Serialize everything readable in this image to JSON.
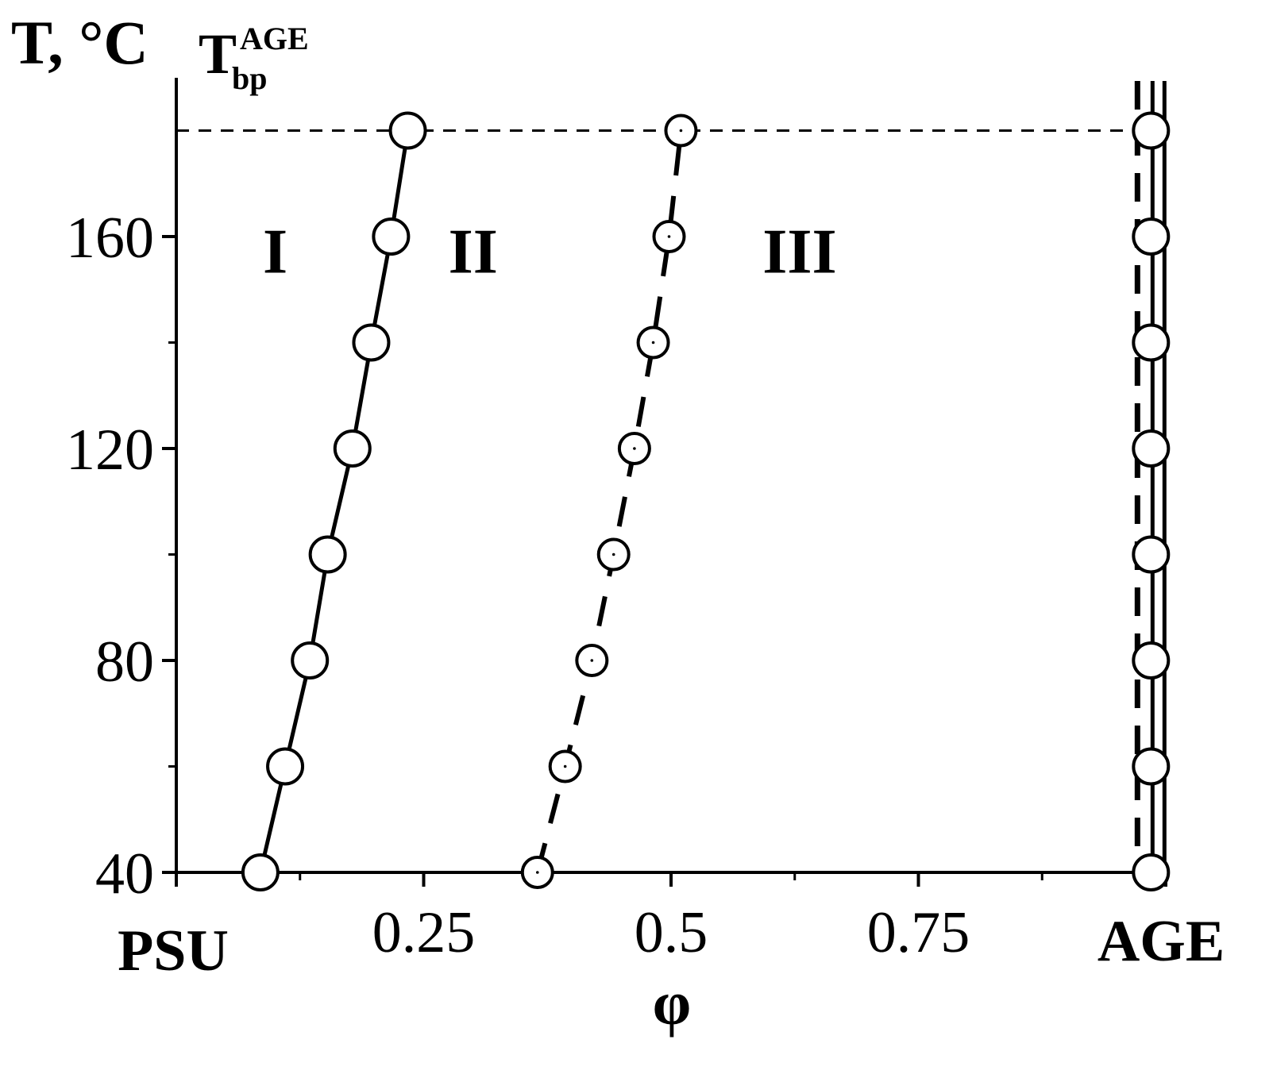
{
  "chart_data": {
    "type": "line",
    "ylabel": "T, °C",
    "xlabel": "φ",
    "bp_label": {
      "main": "T",
      "sup": "AGE",
      "sub": "bp"
    },
    "xlim": [
      0,
      1
    ],
    "ylim": [
      40,
      190
    ],
    "x_ticks": [
      {
        "value": 0.25,
        "label": "0.25"
      },
      {
        "value": 0.5,
        "label": "0.5"
      },
      {
        "value": 0.75,
        "label": "0.75"
      }
    ],
    "x_minor_ticks": [
      0.125,
      0.375,
      0.625,
      0.875
    ],
    "x_end_labels": {
      "left": "PSU",
      "right": "AGE"
    },
    "y_ticks": [
      {
        "value": 40,
        "label": "40"
      },
      {
        "value": 80,
        "label": "80"
      },
      {
        "value": 120,
        "label": "120"
      },
      {
        "value": 160,
        "label": "160"
      }
    ],
    "y_minor_ticks": [
      60,
      100,
      140
    ],
    "bp_temperature": 180,
    "regions": [
      {
        "label": "I",
        "x": 0.1,
        "y": 155
      },
      {
        "label": "II",
        "x": 0.3,
        "y": 155
      },
      {
        "label": "III",
        "x": 0.63,
        "y": 155
      }
    ],
    "series": [
      {
        "style": "solid",
        "marker": "open-circle",
        "x": [
          0.085,
          0.11,
          0.135,
          0.153,
          0.178,
          0.197,
          0.217,
          0.234
        ],
        "y": [
          40,
          60,
          80,
          100,
          120,
          140,
          160,
          180
        ]
      },
      {
        "style": "dashed",
        "marker": "dotted-circle",
        "x": [
          0.365,
          0.393,
          0.42,
          0.442,
          0.463,
          0.482,
          0.498,
          0.51
        ],
        "y": [
          40,
          60,
          80,
          100,
          120,
          140,
          160,
          180
        ]
      },
      {
        "style": "solid-dashed",
        "marker": "open-circle",
        "x": [
          0.985,
          0.985,
          0.985,
          0.985,
          0.985,
          0.985,
          0.985,
          0.985
        ],
        "y": [
          40,
          60,
          80,
          100,
          120,
          140,
          160,
          180
        ]
      }
    ]
  }
}
